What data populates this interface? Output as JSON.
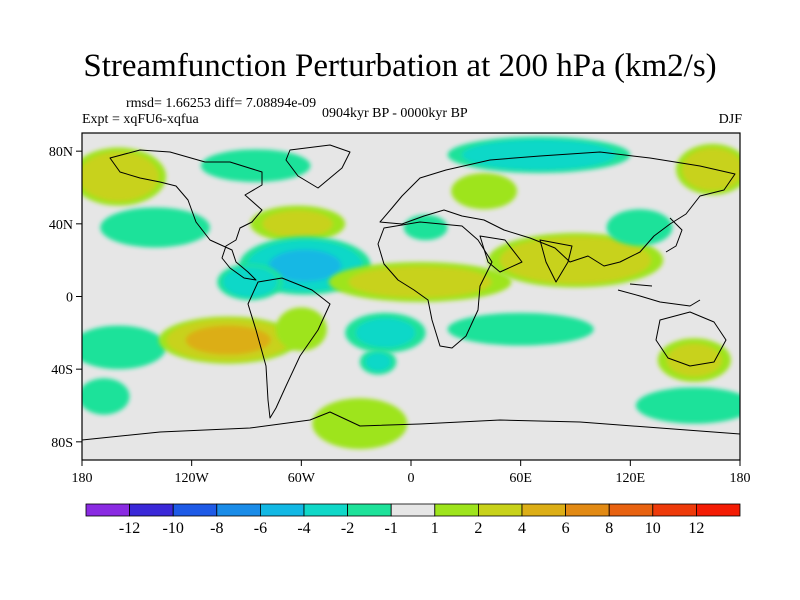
{
  "chart_data": {
    "type": "heatmap",
    "title": "Streamfunction Perturbation at 200 hPa (km2/s)",
    "stats_label": "rmsd= 1.66253 diff= 7.08894e-09",
    "expt_label": "Expt = xqFU6-xqfua",
    "period_label": "0904kyr BP - 0000kyr BP",
    "season_label": "DJF",
    "x_ticks": [
      {
        "value": -180,
        "label": "180"
      },
      {
        "value": -120,
        "label": "120W"
      },
      {
        "value": -60,
        "label": "60W"
      },
      {
        "value": 0,
        "label": "0"
      },
      {
        "value": 60,
        "label": "60E"
      },
      {
        "value": 120,
        "label": "120E"
      },
      {
        "value": 180,
        "label": "180"
      }
    ],
    "y_ticks": [
      {
        "value": 80,
        "label": "80N"
      },
      {
        "value": 40,
        "label": "40N"
      },
      {
        "value": 0,
        "label": "0"
      },
      {
        "value": -40,
        "label": "40S"
      },
      {
        "value": -80,
        "label": "80S"
      }
    ],
    "xlim": [
      -180,
      180
    ],
    "ylim": [
      -90,
      90
    ],
    "colorbar": {
      "labels": [
        "-12",
        "-10",
        "-8",
        "-6",
        "-4",
        "-2",
        "-1",
        "1",
        "2",
        "4",
        "6",
        "8",
        "10",
        "12"
      ],
      "colors": [
        "#8a2be2",
        "#3a28d8",
        "#1e5ae6",
        "#1a8ce8",
        "#12b8e4",
        "#10d8c8",
        "#1ee29a",
        "#e6e6e6",
        "#9ee41c",
        "#c8d21a",
        "#dcae16",
        "#e28a14",
        "#e86210",
        "#ee3a0a",
        "#f41c04"
      ]
    },
    "anomalies": [
      {
        "lon": -160,
        "lat": 66,
        "rx": 26,
        "ry": 16,
        "value": 3.5
      },
      {
        "lon": -140,
        "lat": 38,
        "rx": 30,
        "ry": 11,
        "value": -1.4
      },
      {
        "lon": -85,
        "lat": 72,
        "rx": 30,
        "ry": 9,
        "value": -1.3
      },
      {
        "lon": -62,
        "lat": 40,
        "rx": 26,
        "ry": 10,
        "value": 2.2
      },
      {
        "lon": -58,
        "lat": 17,
        "rx": 36,
        "ry": 16,
        "value": -4.3
      },
      {
        "lon": -88,
        "lat": 8,
        "rx": 18,
        "ry": 10,
        "value": -3.2
      },
      {
        "lon": -160,
        "lat": -28,
        "rx": 26,
        "ry": 12,
        "value": -1.3
      },
      {
        "lon": -100,
        "lat": -24,
        "rx": 38,
        "ry": 13,
        "value": 4.8
      },
      {
        "lon": -60,
        "lat": -18,
        "rx": 14,
        "ry": 12,
        "value": 1.3
      },
      {
        "lon": -28,
        "lat": -70,
        "rx": 26,
        "ry": 14,
        "value": 1.4
      },
      {
        "lon": -14,
        "lat": -20,
        "rx": 22,
        "ry": 11,
        "value": -2.2
      },
      {
        "lon": -18,
        "lat": -36,
        "rx": 10,
        "ry": 7,
        "value": -2.0
      },
      {
        "lon": 5,
        "lat": 8,
        "rx": 50,
        "ry": 11,
        "value": 2.6
      },
      {
        "lon": 90,
        "lat": 20,
        "rx": 48,
        "ry": 15,
        "value": 3.9
      },
      {
        "lon": 40,
        "lat": 58,
        "rx": 18,
        "ry": 10,
        "value": 1.7
      },
      {
        "lon": 8,
        "lat": 38,
        "rx": 12,
        "ry": 7,
        "value": -1.4
      },
      {
        "lon": 70,
        "lat": 78,
        "rx": 50,
        "ry": 10,
        "value": -3.4
      },
      {
        "lon": 165,
        "lat": 70,
        "rx": 20,
        "ry": 14,
        "value": 3.3
      },
      {
        "lon": 125,
        "lat": 38,
        "rx": 18,
        "ry": 10,
        "value": -1.3
      },
      {
        "lon": 60,
        "lat": -18,
        "rx": 40,
        "ry": 9,
        "value": -1.3
      },
      {
        "lon": 155,
        "lat": -35,
        "rx": 20,
        "ry": 12,
        "value": 2.3
      },
      {
        "lon": 155,
        "lat": -60,
        "rx": 32,
        "ry": 10,
        "value": -1.3
      },
      {
        "lon": -168,
        "lat": -55,
        "rx": 14,
        "ry": 10,
        "value": -1.3
      }
    ]
  }
}
